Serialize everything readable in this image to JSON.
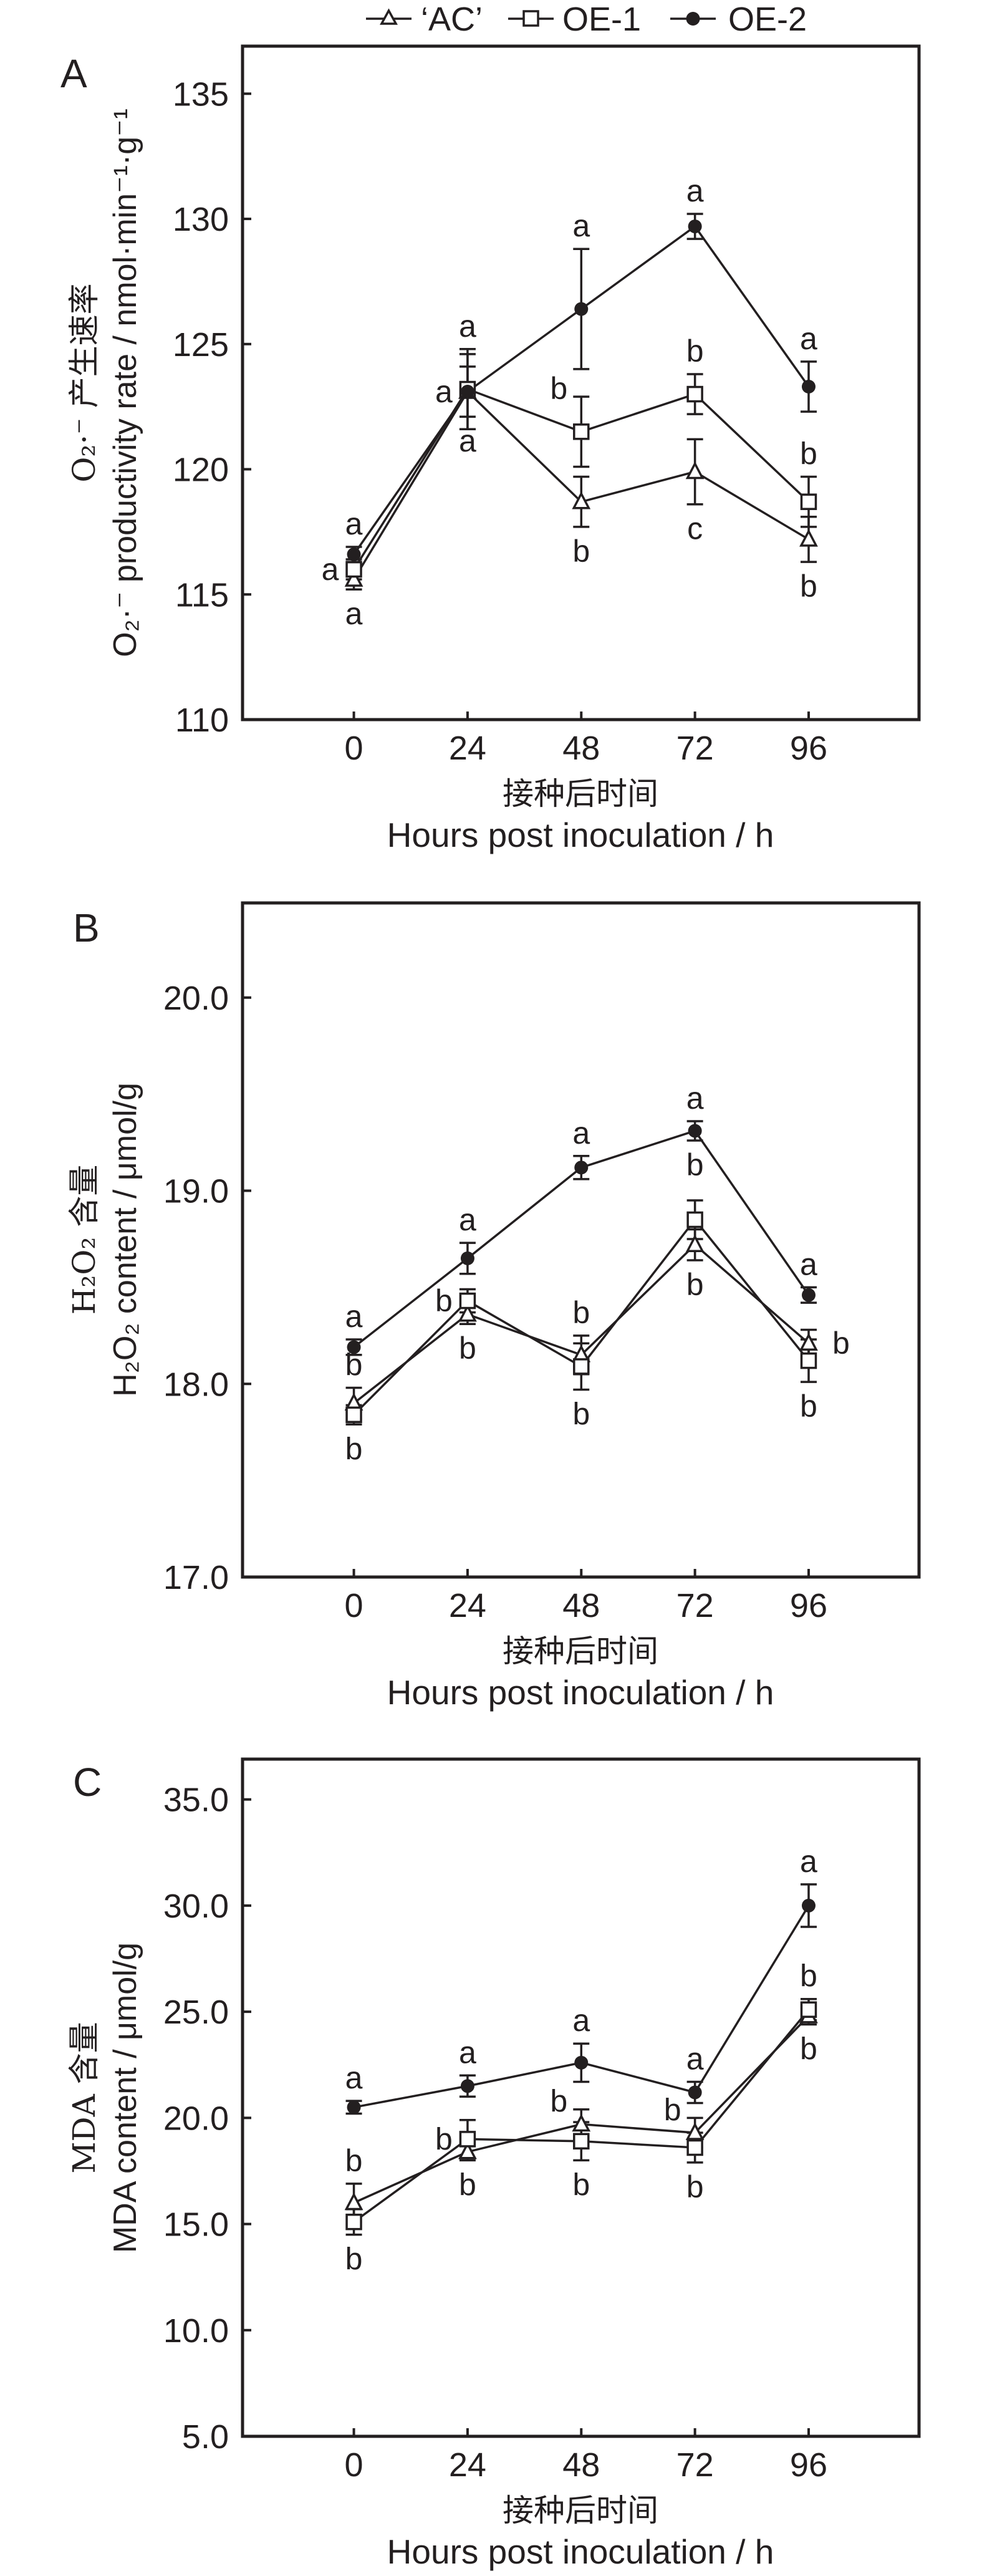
{
  "legend": {
    "position": "top-center",
    "entries": [
      {
        "name": "'AC'",
        "label": "‘AC’",
        "marker": "open-triangle"
      },
      {
        "name": "OE-1",
        "label": "OE-1",
        "marker": "open-square"
      },
      {
        "name": "OE-2",
        "label": "OE-2",
        "marker": "filled-circle"
      }
    ]
  },
  "colors": {
    "ink": "#231f20",
    "background": "#ffffff",
    "marker_fill_open": "#ffffff"
  },
  "chart_data": [
    {
      "panel": "A",
      "type": "line",
      "title": "",
      "xlabel_cn": "接种后时间",
      "xlabel": "Hours post inoculation / h",
      "ylabel_cn": "O₂·⁻ 产生速率",
      "ylabel": "O₂·⁻ productivity rate / nmol·min⁻¹·g⁻¹",
      "x": [
        0,
        24,
        48,
        72,
        96
      ],
      "x_ticks": [
        "0",
        "24",
        "48",
        "72",
        "96"
      ],
      "xlim": [
        -23.5,
        119.3
      ],
      "ylim": [
        110,
        136.9
      ],
      "y_ticks": [
        "110",
        "115",
        "120",
        "125",
        "130",
        "135"
      ],
      "y_tick_values": [
        110,
        115,
        120,
        125,
        130,
        135
      ],
      "grid": false,
      "series": [
        {
          "name": "'AC'",
          "values": [
            115.6,
            123.1,
            118.7,
            119.9,
            117.2
          ],
          "errors": [
            0.4,
            1.0,
            1.0,
            1.3,
            0.9
          ]
        },
        {
          "name": "OE-1",
          "values": [
            116.0,
            123.2,
            121.5,
            123.0,
            118.7
          ],
          "errors": [
            0.4,
            1.6,
            1.4,
            0.8,
            1.0
          ]
        },
        {
          "name": "OE-2",
          "values": [
            116.6,
            123.1,
            126.4,
            129.7,
            123.3
          ],
          "errors": [
            0.3,
            1.5,
            2.4,
            0.5,
            1.0
          ]
        }
      ],
      "significance": [
        {
          "x": 0,
          "series": "OE-2",
          "side": "above",
          "letter": "a"
        },
        {
          "x": 0,
          "series": "OE-1",
          "side": "left",
          "letter": "a"
        },
        {
          "x": 0,
          "series": "'AC'",
          "side": "below",
          "letter": "a"
        },
        {
          "x": 24,
          "series": "OE-1",
          "side": "above",
          "letter": "a"
        },
        {
          "x": 24,
          "series": "OE-2",
          "side": "left",
          "letter": "a"
        },
        {
          "x": 24,
          "series": "'AC'",
          "side": "below",
          "letter": "a"
        },
        {
          "x": 48,
          "series": "OE-2",
          "side": "above",
          "letter": "a"
        },
        {
          "x": 48,
          "series": "OE-1",
          "side": "upper-left",
          "letter": "b"
        },
        {
          "x": 48,
          "series": "'AC'",
          "side": "below",
          "letter": "b"
        },
        {
          "x": 72,
          "series": "OE-2",
          "side": "above",
          "letter": "a"
        },
        {
          "x": 72,
          "series": "OE-1",
          "side": "above",
          "letter": "b"
        },
        {
          "x": 72,
          "series": "'AC'",
          "side": "below",
          "letter": "c"
        },
        {
          "x": 96,
          "series": "OE-2",
          "side": "above",
          "letter": "a"
        },
        {
          "x": 96,
          "series": "OE-1",
          "side": "above",
          "letter": "b"
        },
        {
          "x": 96,
          "series": "'AC'",
          "side": "below",
          "letter": "b"
        }
      ]
    },
    {
      "panel": "B",
      "type": "line",
      "title": "",
      "xlabel_cn": "接种后时间",
      "xlabel": "Hours post inoculation / h",
      "ylabel_cn": "H₂O₂ 含量",
      "ylabel": "H₂O₂ content / μmol/g",
      "x": [
        0,
        24,
        48,
        72,
        96
      ],
      "x_ticks": [
        "0",
        "24",
        "48",
        "72",
        "96"
      ],
      "xlim": [
        -23.5,
        119.3
      ],
      "ylim": [
        17.0,
        20.49
      ],
      "y_ticks": [
        "17.0",
        "18.0",
        "19.0",
        "20.0"
      ],
      "y_tick_values": [
        17.0,
        18.0,
        19.0,
        20.0
      ],
      "grid": false,
      "series": [
        {
          "name": "'AC'",
          "values": [
            17.9,
            18.36,
            18.15,
            18.72,
            18.21
          ],
          "errors": [
            0.08,
            0.05,
            0.1,
            0.08,
            0.07
          ]
        },
        {
          "name": "OE-1",
          "values": [
            17.84,
            18.43,
            18.09,
            18.85,
            18.12
          ],
          "errors": [
            0.05,
            0.06,
            0.12,
            0.1,
            0.11
          ]
        },
        {
          "name": "OE-2",
          "values": [
            18.19,
            18.65,
            19.12,
            19.31,
            18.46
          ],
          "errors": [
            0.04,
            0.08,
            0.06,
            0.05,
            0.04
          ]
        }
      ],
      "significance": [
        {
          "x": 0,
          "series": "OE-2",
          "side": "above",
          "letter": "a"
        },
        {
          "x": 0,
          "series": "'AC'",
          "side": "above",
          "letter": "b"
        },
        {
          "x": 0,
          "series": "OE-1",
          "side": "below",
          "letter": "b"
        },
        {
          "x": 24,
          "series": "OE-2",
          "side": "above",
          "letter": "a"
        },
        {
          "x": 24,
          "series": "OE-1",
          "side": "left",
          "letter": "b"
        },
        {
          "x": 24,
          "series": "'AC'",
          "side": "below",
          "letter": "b"
        },
        {
          "x": 48,
          "series": "OE-2",
          "side": "above",
          "letter": "a"
        },
        {
          "x": 48,
          "series": "'AC'",
          "side": "above",
          "letter": "b"
        },
        {
          "x": 48,
          "series": "OE-1",
          "side": "below",
          "letter": "b"
        },
        {
          "x": 72,
          "series": "OE-2",
          "side": "above",
          "letter": "a"
        },
        {
          "x": 72,
          "series": "OE-2",
          "side": "below",
          "letter": "b"
        },
        {
          "x": 72,
          "series": "'AC'",
          "side": "below",
          "letter": "b"
        },
        {
          "x": 96,
          "series": "OE-2",
          "side": "above",
          "letter": "a"
        },
        {
          "x": 96,
          "series": "'AC'",
          "side": "right",
          "letter": "b"
        },
        {
          "x": 96,
          "series": "OE-1",
          "side": "below",
          "letter": "b"
        }
      ]
    },
    {
      "panel": "C",
      "type": "line",
      "title": "",
      "xlabel_cn": "接种后时间",
      "xlabel": "Hours post inoculation / h",
      "ylabel_cn": "MDA 含量",
      "ylabel": "MDA content / μmol/g",
      "x": [
        0,
        24,
        48,
        72,
        96
      ],
      "x_ticks": [
        "0",
        "24",
        "48",
        "72",
        "96"
      ],
      "xlim": [
        -23.5,
        119.3
      ],
      "ylim": [
        5.0,
        36.9
      ],
      "y_ticks": [
        "5.0",
        "10.0",
        "15.0",
        "20.0",
        "25.0",
        "30.0",
        "35.0"
      ],
      "y_tick_values": [
        5.0,
        10.0,
        15.0,
        20.0,
        25.0,
        30.0,
        35.0
      ],
      "grid": false,
      "series": [
        {
          "name": "'AC'",
          "values": [
            16.0,
            18.4,
            19.7,
            19.3,
            24.8
          ],
          "errors": [
            0.9,
            0.4,
            0.7,
            0.7,
            0.4
          ]
        },
        {
          "name": "OE-1",
          "values": [
            15.1,
            19.0,
            18.9,
            18.6,
            25.1
          ],
          "errors": [
            0.6,
            0.9,
            0.9,
            0.7,
            0.5
          ]
        },
        {
          "name": "OE-2",
          "values": [
            20.5,
            21.5,
            22.6,
            21.2,
            30.0
          ],
          "errors": [
            0.3,
            0.5,
            0.9,
            0.5,
            1.0
          ]
        }
      ],
      "significance": [
        {
          "x": 0,
          "series": "OE-2",
          "side": "above",
          "letter": "a"
        },
        {
          "x": 0,
          "series": "'AC'",
          "side": "above",
          "letter": "b"
        },
        {
          "x": 0,
          "series": "OE-1",
          "side": "below",
          "letter": "b"
        },
        {
          "x": 24,
          "series": "OE-2",
          "side": "above",
          "letter": "a"
        },
        {
          "x": 24,
          "series": "OE-1",
          "side": "left",
          "letter": "b"
        },
        {
          "x": 24,
          "series": "'AC'",
          "side": "below",
          "letter": "b"
        },
        {
          "x": 48,
          "series": "OE-2",
          "side": "above",
          "letter": "a"
        },
        {
          "x": 48,
          "series": "'AC'",
          "side": "upper-left",
          "letter": "b"
        },
        {
          "x": 48,
          "series": "OE-1",
          "side": "below",
          "letter": "b"
        },
        {
          "x": 72,
          "series": "OE-2",
          "side": "above",
          "letter": "a"
        },
        {
          "x": 72,
          "series": "'AC'",
          "side": "upper-left",
          "letter": "b"
        },
        {
          "x": 72,
          "series": "OE-1",
          "side": "below",
          "letter": "b"
        },
        {
          "x": 96,
          "series": "OE-2",
          "side": "above",
          "letter": "a"
        },
        {
          "x": 96,
          "series": "OE-1",
          "side": "above",
          "letter": "b"
        },
        {
          "x": 96,
          "series": "'AC'",
          "side": "below",
          "letter": "b"
        }
      ]
    }
  ]
}
